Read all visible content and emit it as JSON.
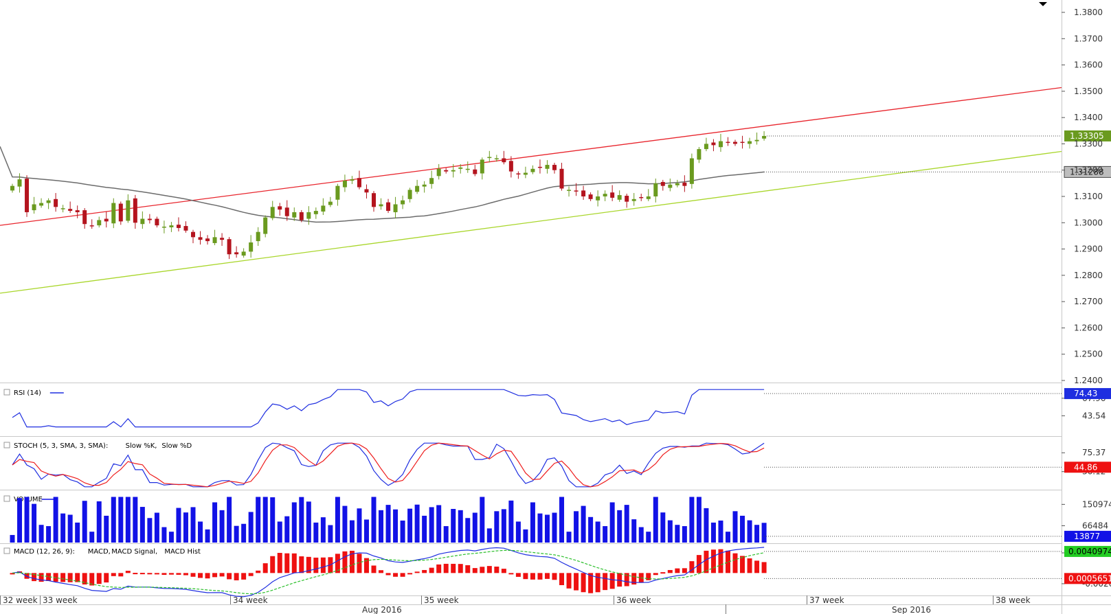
{
  "colors": {
    "up": "#6a9a1f",
    "down": "#b4141e",
    "channel_upper": "#e8242c",
    "channel_lower": "#a9d62b",
    "ma": "#6b6b6b",
    "rsi": "#1e2ee0",
    "stoch_k": "#1e2ee0",
    "stoch_d": "#ee1c1c",
    "volume": "#1212e6",
    "macd": "#1e2ee0",
    "macd_signal": "#2bbf2b",
    "macd_hist": "#ee1111"
  },
  "chart_data": {
    "type": "candlestick",
    "price_ticks": [
      "1.3800",
      "1.3700",
      "1.3600",
      "1.3500",
      "1.3400",
      "1.3300",
      "1.3200",
      "1.3100",
      "1.3000",
      "1.2900",
      "1.2800",
      "1.2700",
      "1.2600",
      "1.2500",
      "1.2400"
    ],
    "current_price": "1.33305",
    "ma_value": "1.31288",
    "x_labels": [
      "32 week",
      "33 week",
      "34 week",
      "Aug 2016",
      "35 week",
      "36 week",
      "37 week",
      "Sep 2016",
      "38 week"
    ],
    "closes": [
      1.314,
      1.3165,
      1.304,
      1.307,
      1.3075,
      1.3085,
      1.306,
      1.3055,
      1.3045,
      1.304,
      1.2995,
      1.299,
      1.301,
      1.3005,
      1.3075,
      1.3005,
      1.3085,
      1.3,
      1.3015,
      1.301,
      1.299,
      1.2985,
      1.299,
      1.298,
      1.297,
      1.2945,
      1.2935,
      1.293,
      1.2945,
      1.2935,
      1.288,
      1.288,
      1.289,
      1.2925,
      1.2965,
      1.302,
      1.306,
      1.305,
      1.3025,
      1.304,
      1.301,
      1.304,
      1.3045,
      1.3065,
      1.308,
      1.314,
      1.316,
      1.3165,
      1.3135,
      1.3115,
      1.306,
      1.307,
      1.3045,
      1.307,
      1.3085,
      1.3125,
      1.314,
      1.3145,
      1.317,
      1.3205,
      1.3195,
      1.32,
      1.321,
      1.3205,
      1.3185,
      1.324,
      1.325,
      1.3245,
      1.323,
      1.3195,
      1.3185,
      1.319,
      1.3205,
      1.321,
      1.322,
      1.32,
      1.313,
      1.3125,
      1.312,
      1.31,
      1.309,
      1.31,
      1.311,
      1.3095,
      1.3105,
      1.308,
      1.309,
      1.3095,
      1.31,
      1.315,
      1.314,
      1.3145,
      1.315,
      1.314,
      1.3245,
      1.328,
      1.33,
      1.3295,
      1.331,
      1.3305,
      1.33,
      1.3305,
      1.331,
      1.3315,
      1.333
    ],
    "upper_channel": [
      1.299,
      1.3514
    ],
    "lower_channel": [
      1.2732,
      1.3271
    ],
    "indicators": [
      {
        "label": "RSI (14)",
        "ticks": [
          "67.96",
          "43.54"
        ],
        "value": "74.43"
      },
      {
        "label": "STOCH (5, 3, SMA, 3, SMA):",
        "key1": "Slow %K,",
        "key2": "Slow %D",
        "ticks": [
          "75.37",
          "36.12"
        ],
        "value": "44.86"
      },
      {
        "label": "VOLUME",
        "ticks": [
          "150974",
          "66484"
        ],
        "value": "13877"
      },
      {
        "label": "MACD (12, 26, 9):",
        "key1": "MACD,",
        "key2": "MACD Signal,",
        "key3": "MACD Hist",
        "ticks": [
          "0.0038273",
          "-0.0020303"
        ],
        "value": "0.0040974",
        "value2": "0.0005651"
      }
    ]
  }
}
